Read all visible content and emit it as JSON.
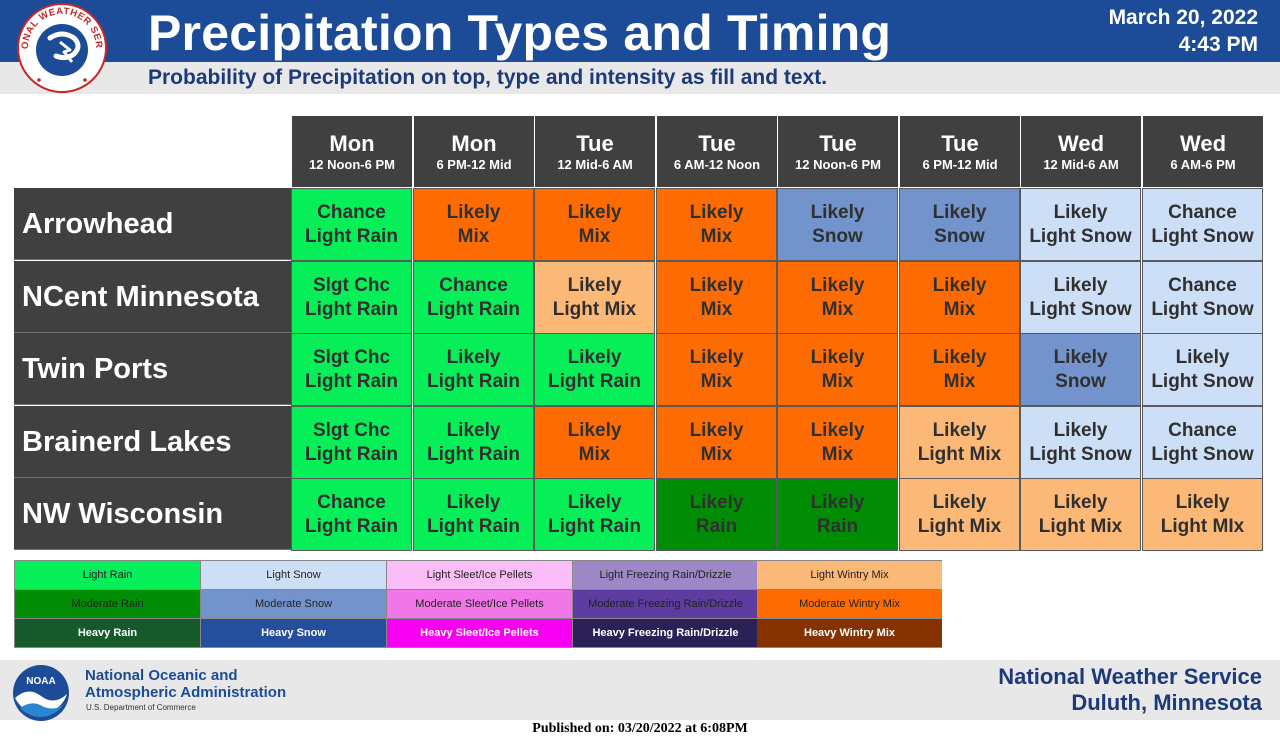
{
  "header": {
    "title": "Precipitation Types and Timing",
    "date": "March 20, 2022",
    "time": "4:43 PM",
    "subtitle": "Probability of Precipitation on top, type and intensity as fill and text.",
    "logo_text": "NATIONAL WEATHER SERVICE"
  },
  "columns": [
    {
      "day": "Mon",
      "period": "12 Noon-6 PM"
    },
    {
      "day": "Mon",
      "period": "6 PM-12 Mid"
    },
    {
      "day": "Tue",
      "period": "12 Mid-6 AM"
    },
    {
      "day": "Tue",
      "period": "6 AM-12 Noon"
    },
    {
      "day": "Tue",
      "period": "12 Noon-6 PM"
    },
    {
      "day": "Tue",
      "period": "6 PM-12 Mid"
    },
    {
      "day": "Wed",
      "period": "12 Mid-6 AM"
    },
    {
      "day": "Wed",
      "period": "6 AM-6 PM"
    }
  ],
  "rows": [
    {
      "name": "Arrowhead",
      "cells": [
        {
          "prob": "Chance",
          "type": "Light Rain",
          "cat": "light-rain"
        },
        {
          "prob": "Likely",
          "type": "Mix",
          "cat": "moderate-wintry-mix"
        },
        {
          "prob": "Likely",
          "type": "Mix",
          "cat": "moderate-wintry-mix"
        },
        {
          "prob": "Likely",
          "type": "Mix",
          "cat": "moderate-wintry-mix"
        },
        {
          "prob": "Likely",
          "type": "Snow",
          "cat": "moderate-snow"
        },
        {
          "prob": "Likely",
          "type": "Snow",
          "cat": "moderate-snow"
        },
        {
          "prob": "Likely",
          "type": "Light Snow",
          "cat": "light-snow"
        },
        {
          "prob": "Chance",
          "type": "Light Snow",
          "cat": "light-snow"
        }
      ]
    },
    {
      "name": "NCent Minnesota",
      "cells": [
        {
          "prob": "Slgt Chc",
          "type": "Light Rain",
          "cat": "light-rain"
        },
        {
          "prob": "Chance",
          "type": "Light Rain",
          "cat": "light-rain"
        },
        {
          "prob": "Likely",
          "type": "Light Mix",
          "cat": "light-wintry-mix"
        },
        {
          "prob": "Likely",
          "type": "Mix",
          "cat": "moderate-wintry-mix"
        },
        {
          "prob": "Likely",
          "type": "Mix",
          "cat": "moderate-wintry-mix"
        },
        {
          "prob": "Likely",
          "type": "Mix",
          "cat": "moderate-wintry-mix"
        },
        {
          "prob": "Likely",
          "type": "Light Snow",
          "cat": "light-snow"
        },
        {
          "prob": "Chance",
          "type": "Light Snow",
          "cat": "light-snow"
        }
      ]
    },
    {
      "name": "Twin Ports",
      "cells": [
        {
          "prob": "Slgt Chc",
          "type": "Light Rain",
          "cat": "light-rain"
        },
        {
          "prob": "Likely",
          "type": "Light Rain",
          "cat": "light-rain"
        },
        {
          "prob": "Likely",
          "type": "Light Rain",
          "cat": "light-rain"
        },
        {
          "prob": "Likely",
          "type": "Mix",
          "cat": "moderate-wintry-mix"
        },
        {
          "prob": "Likely",
          "type": "Mix",
          "cat": "moderate-wintry-mix"
        },
        {
          "prob": "Likely",
          "type": "Mix",
          "cat": "moderate-wintry-mix"
        },
        {
          "prob": "Likely",
          "type": "Snow",
          "cat": "moderate-snow"
        },
        {
          "prob": "Likely",
          "type": "Light Snow",
          "cat": "light-snow"
        }
      ]
    },
    {
      "name": "Brainerd Lakes",
      "cells": [
        {
          "prob": "Slgt Chc",
          "type": "Light Rain",
          "cat": "light-rain"
        },
        {
          "prob": "Likely",
          "type": "Light Rain",
          "cat": "light-rain"
        },
        {
          "prob": "Likely",
          "type": "Mix",
          "cat": "moderate-wintry-mix"
        },
        {
          "prob": "Likely",
          "type": "Mix",
          "cat": "moderate-wintry-mix"
        },
        {
          "prob": "Likely",
          "type": "Mix",
          "cat": "moderate-wintry-mix"
        },
        {
          "prob": "Likely",
          "type": "Light Mix",
          "cat": "light-wintry-mix"
        },
        {
          "prob": "Likely",
          "type": "Light Snow",
          "cat": "light-snow"
        },
        {
          "prob": "Chance",
          "type": "Light Snow",
          "cat": "light-snow"
        }
      ]
    },
    {
      "name": "NW Wisconsin",
      "cells": [
        {
          "prob": "Chance",
          "type": "Light Rain",
          "cat": "light-rain"
        },
        {
          "prob": "Likely",
          "type": "Light Rain",
          "cat": "light-rain"
        },
        {
          "prob": "Likely",
          "type": "Light Rain",
          "cat": "light-rain"
        },
        {
          "prob": "Likely",
          "type": "Rain",
          "cat": "moderate-rain"
        },
        {
          "prob": "Likely",
          "type": "Rain",
          "cat": "moderate-rain"
        },
        {
          "prob": "Likely",
          "type": "Light Mix",
          "cat": "light-wintry-mix"
        },
        {
          "prob": "Likely",
          "type": "Light Mix",
          "cat": "light-wintry-mix"
        },
        {
          "prob": "Likely",
          "type": "Light MIx",
          "cat": "light-wintry-mix"
        }
      ]
    }
  ],
  "legend": [
    [
      {
        "label": "Light Rain",
        "color": "#06ef59"
      },
      {
        "label": "Light Snow",
        "color": "#cddff7"
      },
      {
        "label": "Light Sleet/Ice Pellets",
        "color": "#fbbdf7"
      },
      {
        "label": "Light Freezing Rain/Drizzle",
        "color": "#9e87c6"
      },
      {
        "label": "Light Wintry Mix",
        "color": "#fbb877"
      }
    ],
    [
      {
        "label": "Moderate Rain",
        "color": "#008c05"
      },
      {
        "label": "Moderate Snow",
        "color": "#7293cc"
      },
      {
        "label": "Moderate Sleet/Ice Pellets",
        "color": "#f176e8"
      },
      {
        "label": "Moderate Freezing Rain/Drizzle",
        "color": "#5c3c9e"
      },
      {
        "label": "Moderate Wintry Mix",
        "color": "#fe6b00"
      }
    ],
    [
      {
        "label": "Heavy Rain",
        "color": "#16592b"
      },
      {
        "label": "Heavy Snow",
        "color": "#234f9d"
      },
      {
        "label": "Heavy Sleet/Ice Pellets",
        "color": "#f600f2"
      },
      {
        "label": "Heavy Freezing Rain/Drizzle",
        "color": "#2b2157"
      },
      {
        "label": "Heavy Wintry Mix",
        "color": "#843200"
      }
    ]
  ],
  "footer": {
    "noaa_line1": "National Oceanic and",
    "noaa_line2": "Atmospheric Administration",
    "noaa_dept": "U.S. Department of Commerce",
    "noaa_logo_text": "NOAA",
    "office_line1": "National Weather Service",
    "office_line2": "Duluth, Minnesota",
    "published": "Published on: 03/20/2022 at 6:08PM"
  }
}
